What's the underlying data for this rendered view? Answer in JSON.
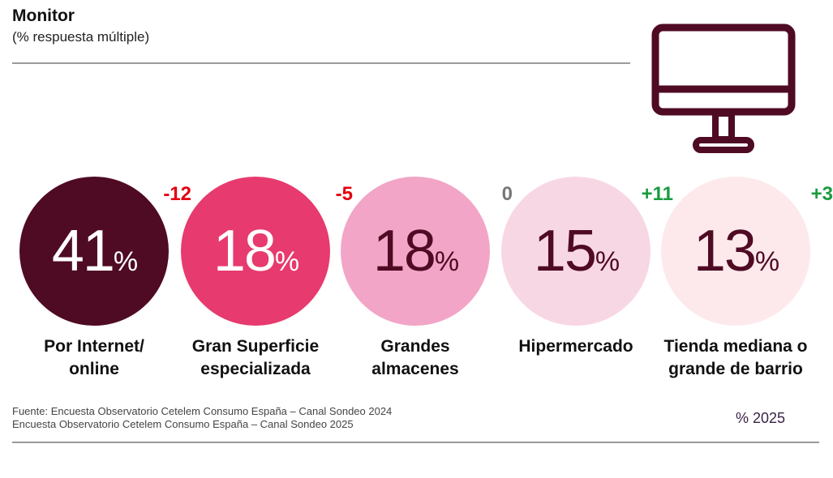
{
  "header": {
    "title": "Monitor",
    "subtitle": "(% respuesta múltiple)",
    "icon": "monitor-icon"
  },
  "chart_data": {
    "type": "bubble",
    "title": "Monitor",
    "subtitle": "(% respuesta múltiple)",
    "unit": "%",
    "categories": [
      "Por Internet/ online",
      "Gran Superficie especializada",
      "Grandes almacenes",
      "Hipermercado",
      "Tienda mediana o grande de barrio"
    ],
    "values": [
      41,
      18,
      18,
      15,
      13
    ],
    "deltas": [
      "-12",
      "-5",
      "0",
      "+11",
      "+3"
    ],
    "colors": [
      "#4f0a24",
      "#e73a6e",
      "#f2a5c6",
      "#f8d7e5",
      "#fde9ec"
    ],
    "text_colors": [
      "#ffffff",
      "#ffffff",
      "#4f0a24",
      "#4f0a24",
      "#4f0a24"
    ],
    "delta_colors": [
      "#e3000f",
      "#e3000f",
      "#777777",
      "#1a9b3e",
      "#1a9b3e"
    ],
    "legend": "% 2025"
  },
  "items": [
    {
      "value": "41",
      "pct": "%",
      "delta": "-12",
      "label": "Por Internet/ online"
    },
    {
      "value": "18",
      "pct": "%",
      "delta": "-5",
      "label": "Gran Superficie especializada"
    },
    {
      "value": "18",
      "pct": "%",
      "delta": "0",
      "label": "Grandes almacenes"
    },
    {
      "value": "15",
      "pct": "%",
      "delta": "+11",
      "label": "Hipermercado"
    },
    {
      "value": "13",
      "pct": "%",
      "delta": "+3",
      "label": "Tienda mediana o grande de barrio"
    }
  ],
  "footer": {
    "source_line1": "Fuente: Encuesta Observatorio Cetelem Consumo España – Canal Sondeo 2024",
    "source_line2": "Encuesta Observatorio Cetelem Consumo España – Canal Sondeo 2025",
    "legend": "% 2025"
  }
}
